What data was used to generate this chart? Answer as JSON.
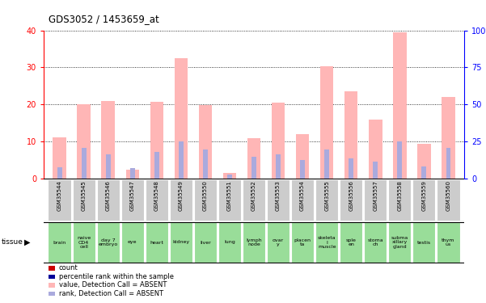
{
  "title": "GDS3052 / 1453659_at",
  "samples": [
    "GSM35544",
    "GSM35545",
    "GSM35546",
    "GSM35547",
    "GSM35548",
    "GSM35549",
    "GSM35550",
    "GSM35551",
    "GSM35552",
    "GSM35553",
    "GSM35554",
    "GSM35555",
    "GSM35556",
    "GSM35557",
    "GSM35558",
    "GSM35559",
    "GSM35560"
  ],
  "absent_value": [
    11.2,
    20.0,
    21.0,
    2.5,
    20.8,
    32.5,
    19.8,
    1.5,
    11.0,
    20.5,
    12.0,
    30.3,
    23.5,
    16.0,
    39.5,
    9.5,
    22.0
  ],
  "absent_rank": [
    7.5,
    21.0,
    16.5,
    7.0,
    18.0,
    25.0,
    20.0,
    3.0,
    15.0,
    16.5,
    12.5,
    20.0,
    13.5,
    11.5,
    25.0,
    8.5,
    21.0
  ],
  "ylim_left": [
    0,
    40
  ],
  "ylim_right": [
    0,
    100
  ],
  "yticks_left": [
    0,
    10,
    20,
    30,
    40
  ],
  "yticks_right": [
    0,
    25,
    50,
    75,
    100
  ],
  "ytick_labels_right": [
    "0",
    "25",
    "50",
    "75",
    "100%"
  ],
  "absent_bar_color": "#ffb6b6",
  "absent_rank_color": "#aaaadd",
  "count_color": "#cc0000",
  "percentile_color": "#000099",
  "bar_width": 0.55,
  "sample_bg_color": "#cccccc",
  "tissue_bg_color": "#99dd99",
  "tissue_spans": [
    [
      0,
      0,
      "brain"
    ],
    [
      1,
      1,
      "naive\nCD4\ncell"
    ],
    [
      2,
      2,
      "day 7\nembryо"
    ],
    [
      3,
      3,
      "eye"
    ],
    [
      4,
      4,
      "heart"
    ],
    [
      5,
      5,
      "kidney"
    ],
    [
      6,
      6,
      "liver"
    ],
    [
      7,
      7,
      "lung"
    ],
    [
      8,
      8,
      "lymph\nnode"
    ],
    [
      9,
      9,
      "ovar\ny"
    ],
    [
      10,
      10,
      "placen\nta"
    ],
    [
      11,
      11,
      "skeleta\nl\nmuscle"
    ],
    [
      12,
      12,
      "sple\nen"
    ],
    [
      13,
      13,
      "stoma\nch"
    ],
    [
      14,
      14,
      "subma\nxillary\ngland"
    ],
    [
      15,
      15,
      "testis"
    ],
    [
      16,
      16,
      "thym\nus"
    ]
  ],
  "legend_items": [
    [
      "#cc0000",
      "count"
    ],
    [
      "#000099",
      "percentile rank within the sample"
    ],
    [
      "#ffb6b6",
      "value, Detection Call = ABSENT"
    ],
    [
      "#aaaadd",
      "rank, Detection Call = ABSENT"
    ]
  ]
}
